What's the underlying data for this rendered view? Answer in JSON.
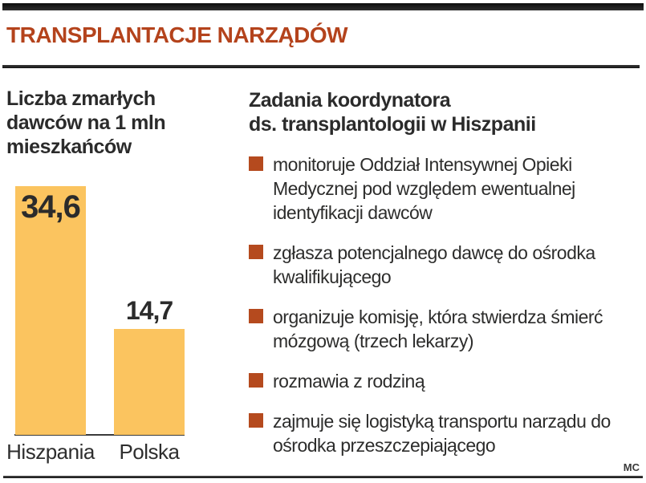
{
  "header": {
    "title": "TRANSPLANTACJE NARZĄDÓW",
    "accent_color": "#b4431c"
  },
  "chart": {
    "title_lines": [
      "Liczba zmarłych",
      "dawców na 1 mln",
      "mieszkańców"
    ]
  },
  "chart_data": {
    "type": "bar",
    "title": "Liczba zmarłych dawców na 1 mln mieszkańców",
    "categories": [
      "Hiszpania",
      "Polska"
    ],
    "values": [
      34.6,
      14.7
    ],
    "value_labels": [
      "34,6",
      "14,7"
    ],
    "value_label_positions": [
      "inside-top",
      "above"
    ],
    "xlabel": "",
    "ylabel": "",
    "ylim": [
      0,
      34.6
    ],
    "grid": false,
    "legend": false,
    "bar_color": "#fbc45f"
  },
  "tasks": {
    "heading_lines": [
      "Zadania koordynatora",
      "ds. transplantologii w Hiszpanii"
    ],
    "bullet_color": "#b54a1e",
    "items": [
      "monitoruje Oddział Intensywnej Opieki Medycznej pod względem ewentualnej identyfikacji dawców",
      "zgłasza potencjalnego dawcę do ośrodka kwalifikującego",
      "organizuje komisję, która stwierdza śmierć mózgową (trzech lekarzy)",
      "rozmawia z rodziną",
      "zajmuje się logistyką transportu narządu do ośrodka przeszczepiającego"
    ]
  },
  "credit": "MC"
}
